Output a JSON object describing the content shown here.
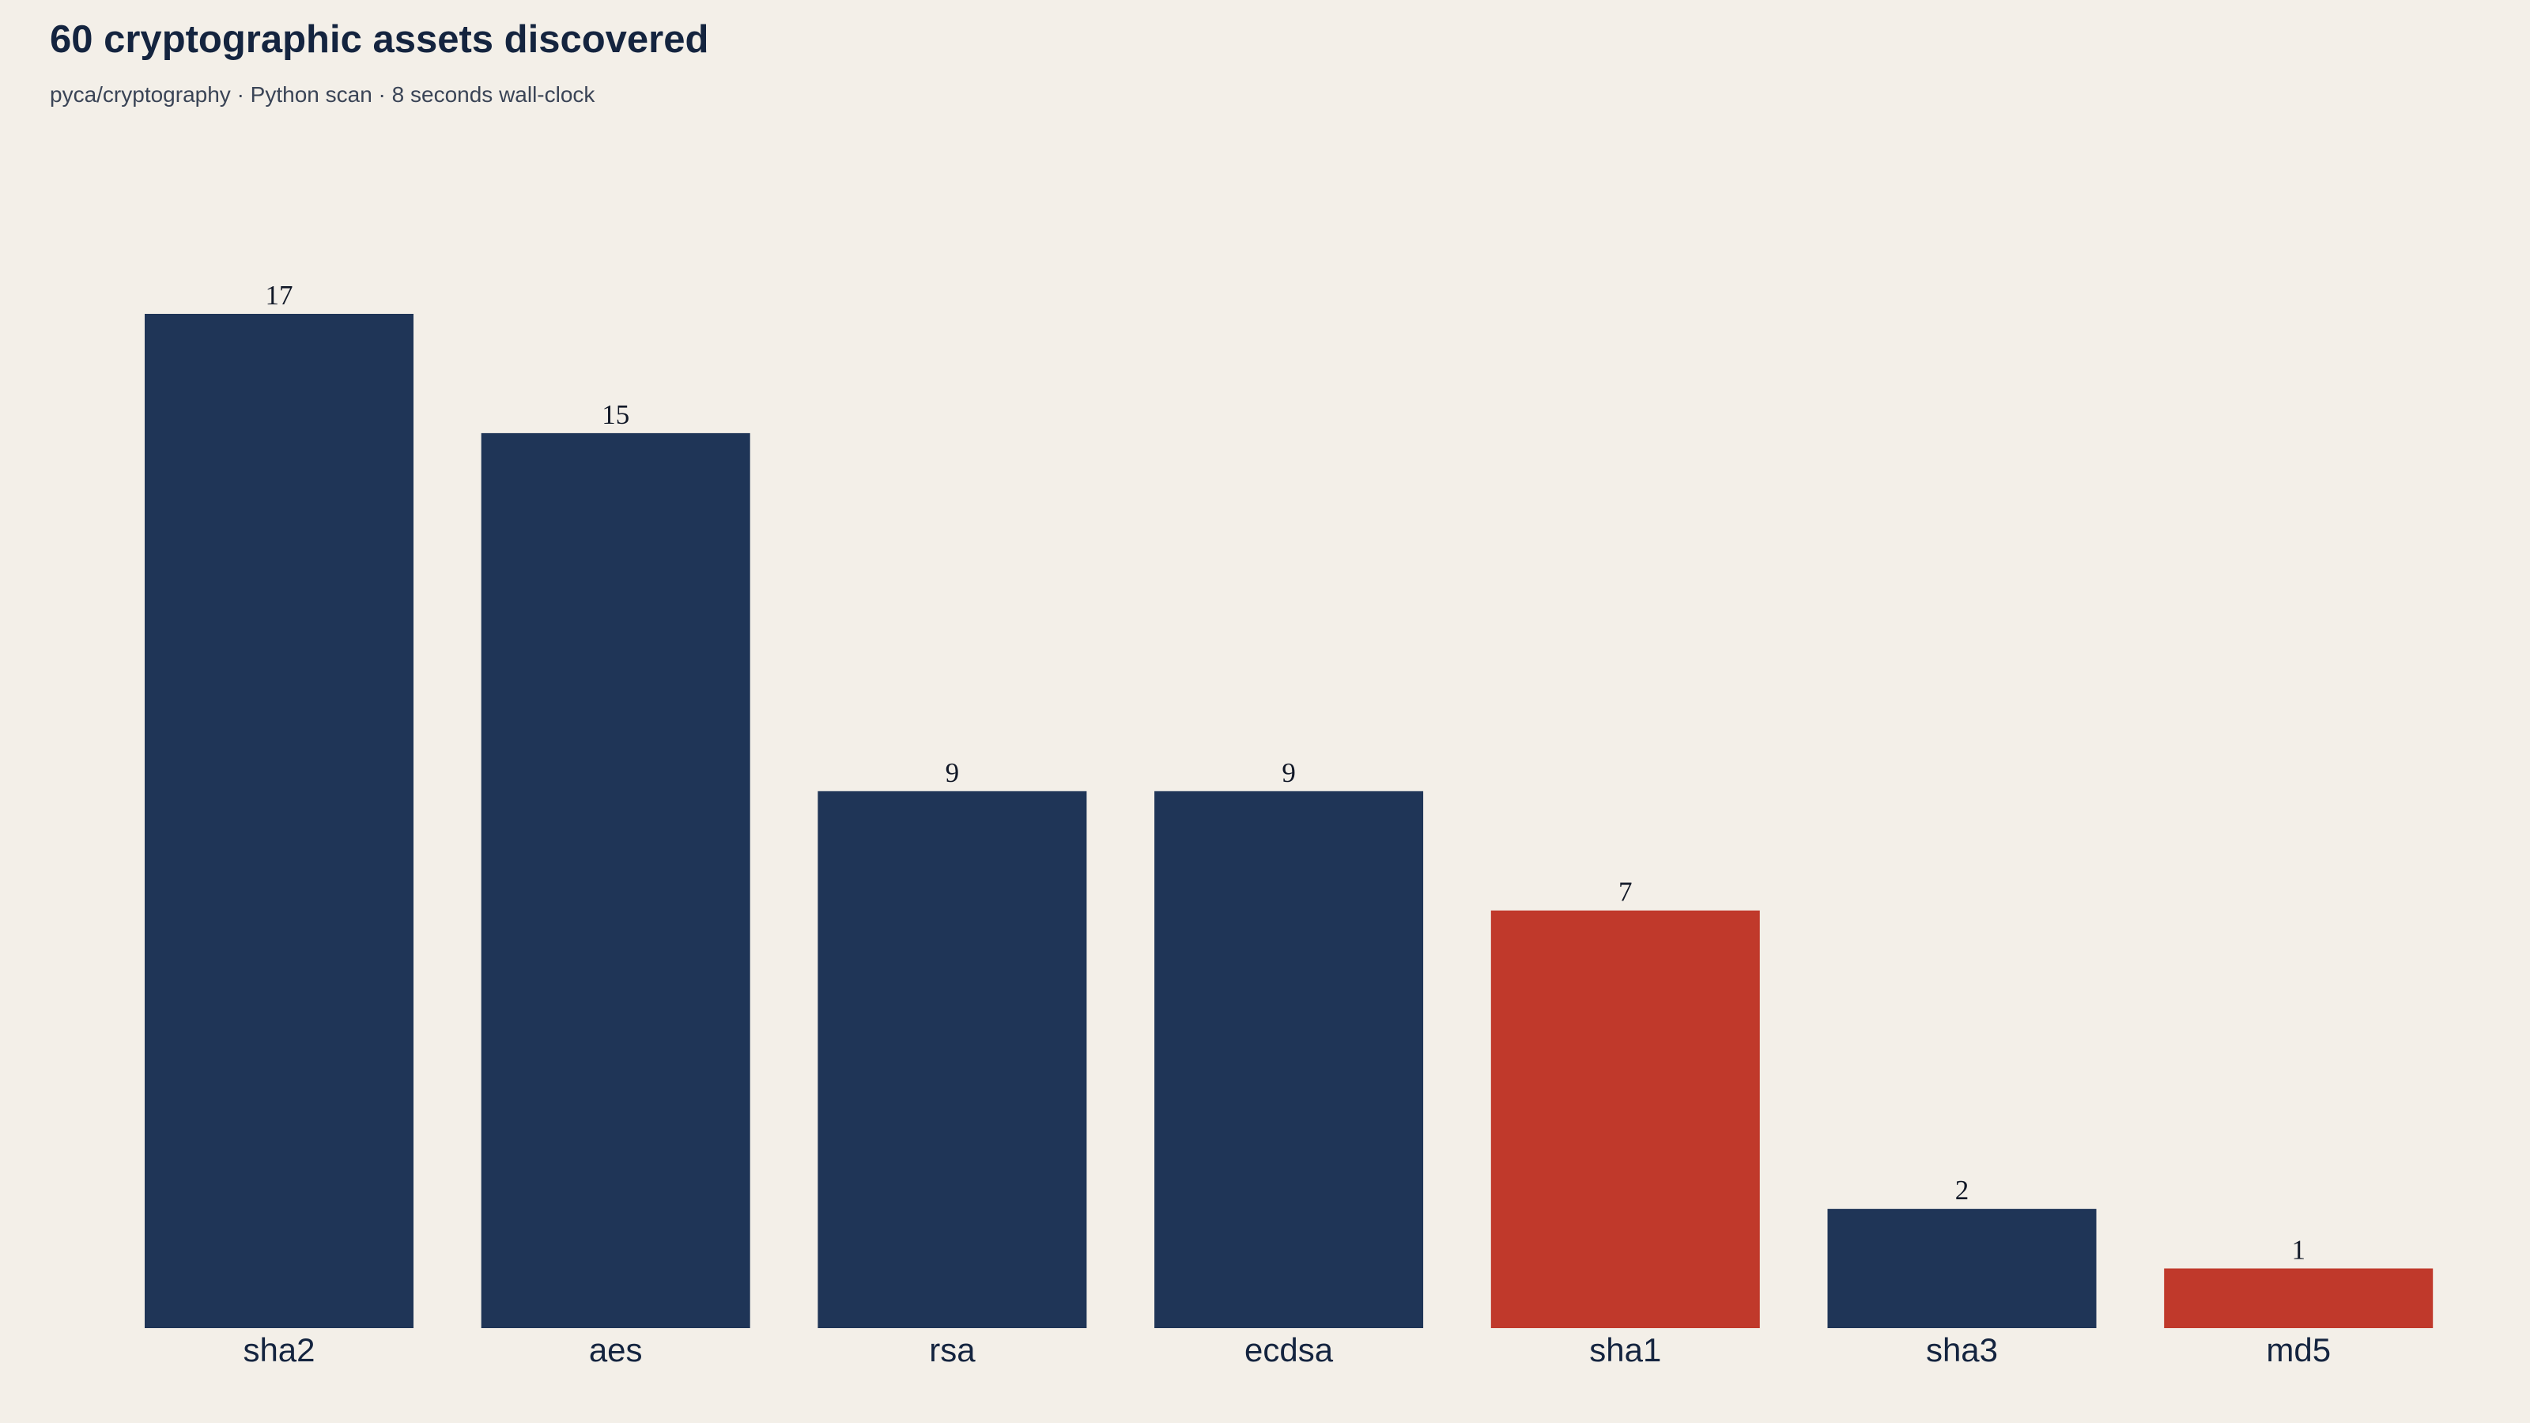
{
  "header": {
    "title": "60 cryptographic assets discovered",
    "subtitle": "pyca/cryptography · Python scan · 8 seconds wall-clock"
  },
  "colors": {
    "background": "#F3EFE8",
    "bar_default": "#1F3557",
    "bar_highlight": "#C0392B",
    "text": "#14243F"
  },
  "chart_data": {
    "type": "bar",
    "title": "60 cryptographic assets discovered",
    "subtitle": "pyca/cryptography · Python scan · 8 seconds wall-clock",
    "categories": [
      "sha2",
      "aes",
      "rsa",
      "ecdsa",
      "sha1",
      "sha3",
      "md5"
    ],
    "values": [
      17,
      15,
      9,
      9,
      7,
      2,
      1
    ],
    "highlighted": [
      "sha1",
      "md5"
    ],
    "xlabel": "",
    "ylabel": "",
    "ylim": [
      0,
      17
    ],
    "grid": false,
    "legend": "none",
    "data_labels": true
  }
}
